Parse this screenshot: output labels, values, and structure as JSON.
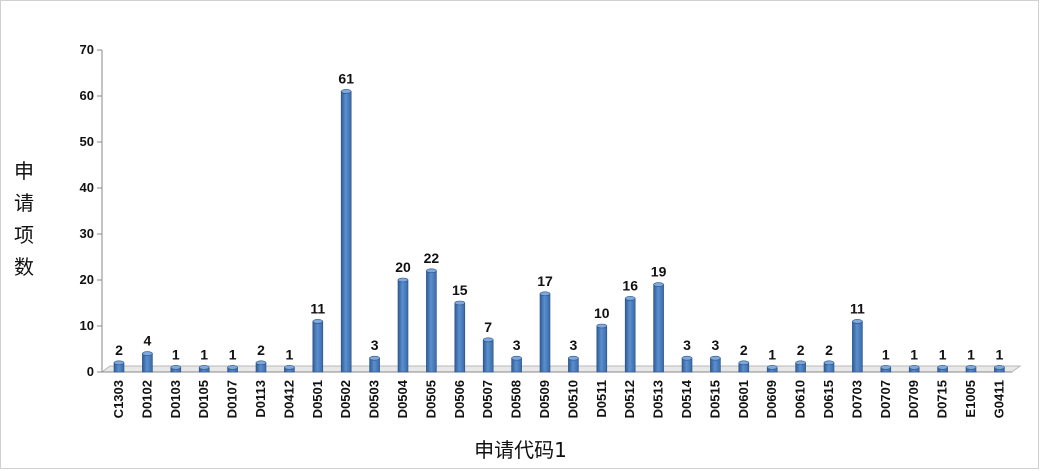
{
  "chart_data": {
    "type": "bar",
    "title": "",
    "xlabel": "申请代码1",
    "ylabel": "申请项数",
    "ylim": [
      0,
      70
    ],
    "yticks": [
      0,
      10,
      20,
      30,
      40,
      50,
      60,
      70
    ],
    "categories": [
      "C1303",
      "D0102",
      "D0103",
      "D0105",
      "D0107",
      "D0113",
      "D0412",
      "D0501",
      "D0502",
      "D0503",
      "D0504",
      "D0505",
      "D0506",
      "D0507",
      "D0508",
      "D0509",
      "D0510",
      "D0511",
      "D0512",
      "D0513",
      "D0514",
      "D0515",
      "D0601",
      "D0609",
      "D0610",
      "D0615",
      "D0703",
      "D0707",
      "D0709",
      "D0715",
      "E1005",
      "G0411"
    ],
    "values": [
      2,
      4,
      1,
      1,
      1,
      2,
      1,
      11,
      61,
      3,
      20,
      22,
      15,
      7,
      3,
      17,
      3,
      10,
      16,
      19,
      3,
      3,
      2,
      1,
      2,
      2,
      11,
      1,
      1,
      1,
      1,
      1
    ],
    "data_labels": true,
    "grid": false,
    "legend": "none",
    "bar_color": "#4F81BD"
  }
}
